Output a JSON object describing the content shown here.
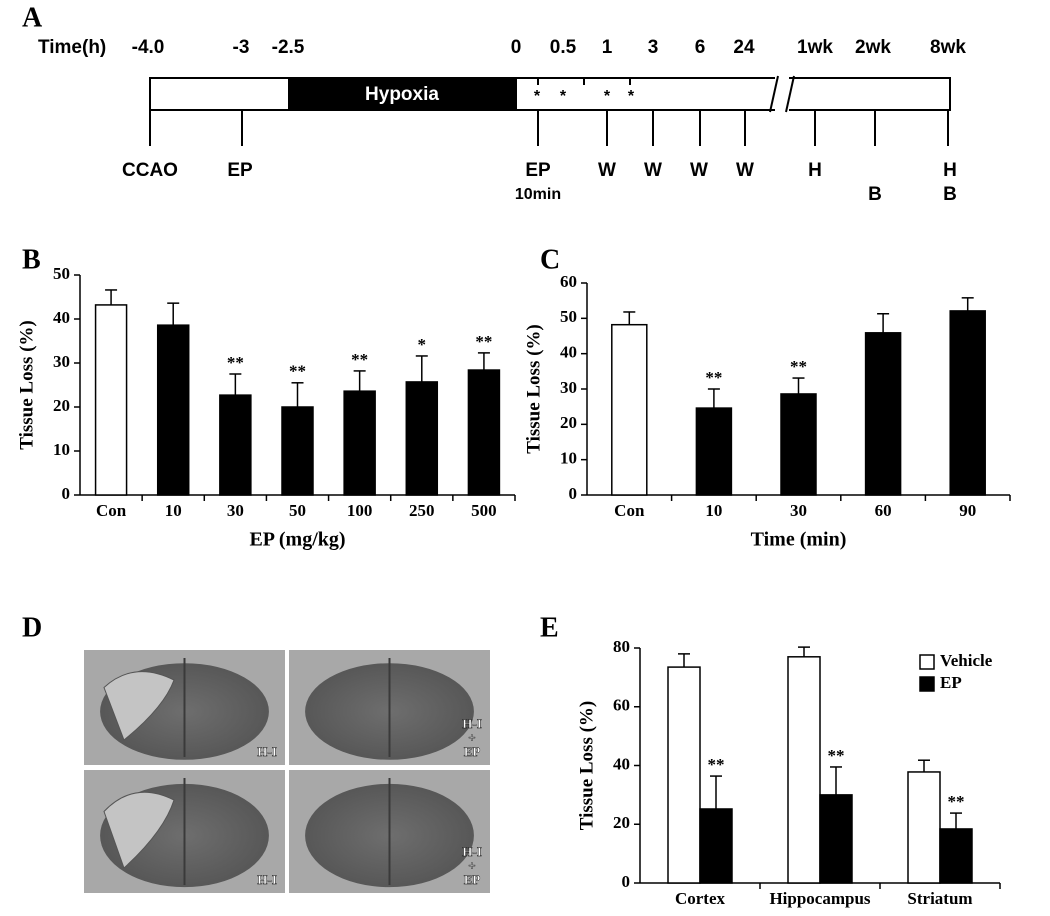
{
  "panel_letters": [
    "A",
    "B",
    "C",
    "D",
    "E"
  ],
  "timeline": {
    "axis_label": "Time(h)",
    "time_labels": [
      "-4.0",
      "-3",
      "-2.5",
      "0",
      "0.5",
      "1",
      "3",
      "6",
      "24",
      "1wk",
      "2wk",
      "8wk"
    ],
    "phase": "Hypoxia",
    "asterisks": [
      "*",
      "*",
      "*",
      "*"
    ],
    "events": [
      "CCAO",
      "EP",
      "EP",
      "10min",
      "W",
      "W",
      "W",
      "W",
      "H",
      "B",
      "H",
      "B"
    ]
  },
  "micrographs": {
    "labels": [
      [
        "H-I"
      ],
      [
        "H-I",
        "+",
        "EP"
      ],
      [
        "H-I"
      ],
      [
        "H-I",
        "+",
        "EP"
      ]
    ]
  },
  "chart_data": [
    {
      "type": "bar",
      "ylabel": "Tissue Loss (%)",
      "xlabel": "EP (mg/kg)",
      "categories": [
        "Con",
        "10",
        "30",
        "50",
        "100",
        "250",
        "500"
      ],
      "series": [
        {
          "values": [
            43.2,
            38.6,
            22.7,
            20,
            23.6,
            25.7,
            28.4
          ],
          "errors": [
            3.4,
            5,
            4.8,
            5.5,
            4.6,
            5.9,
            3.9
          ],
          "colors": [
            "#ffffff",
            "#000000",
            "#000000",
            "#000000",
            "#000000",
            "#000000",
            "#000000"
          ],
          "annotations": [
            null,
            null,
            "**",
            "**",
            "**",
            "*",
            "**"
          ]
        }
      ],
      "ylim": [
        0,
        50
      ],
      "yticks": [
        0,
        10,
        20,
        30,
        40,
        50
      ]
    },
    {
      "type": "bar",
      "ylabel": "Tissue Loss (%)",
      "xlabel": "Time (min)",
      "categories": [
        "Con",
        "10",
        "30",
        "60",
        "90"
      ],
      "series": [
        {
          "values": [
            48.2,
            24.6,
            28.6,
            45.9,
            52.1
          ],
          "errors": [
            3.6,
            5.4,
            4.5,
            5.4,
            3.7
          ],
          "colors": [
            "#ffffff",
            "#000000",
            "#000000",
            "#000000",
            "#000000"
          ],
          "annotations": [
            null,
            "**",
            "**",
            null,
            null
          ]
        }
      ],
      "ylim": [
        0,
        60
      ],
      "yticks": [
        0,
        10,
        20,
        30,
        40,
        50,
        60
      ]
    },
    {
      "type": "grouped-bar",
      "ylabel": "Tissue Loss (%)",
      "categories": [
        "Cortex",
        "Hippocampus",
        "Striatum"
      ],
      "series": [
        {
          "name": "Vehicle",
          "color": "#ffffff",
          "values": [
            73.5,
            77,
            37.8
          ],
          "errors": [
            4.5,
            3.3,
            4
          ],
          "annotations": [
            null,
            null,
            null
          ]
        },
        {
          "name": "EP",
          "color": "#000000",
          "values": [
            25.2,
            30,
            18.4
          ],
          "errors": [
            11.2,
            9.5,
            5.4
          ],
          "annotations": [
            "**",
            "**",
            "**"
          ]
        }
      ],
      "ylim": [
        0,
        80
      ],
      "yticks": [
        0,
        20,
        40,
        60,
        80
      ],
      "legend": "top-right"
    }
  ]
}
